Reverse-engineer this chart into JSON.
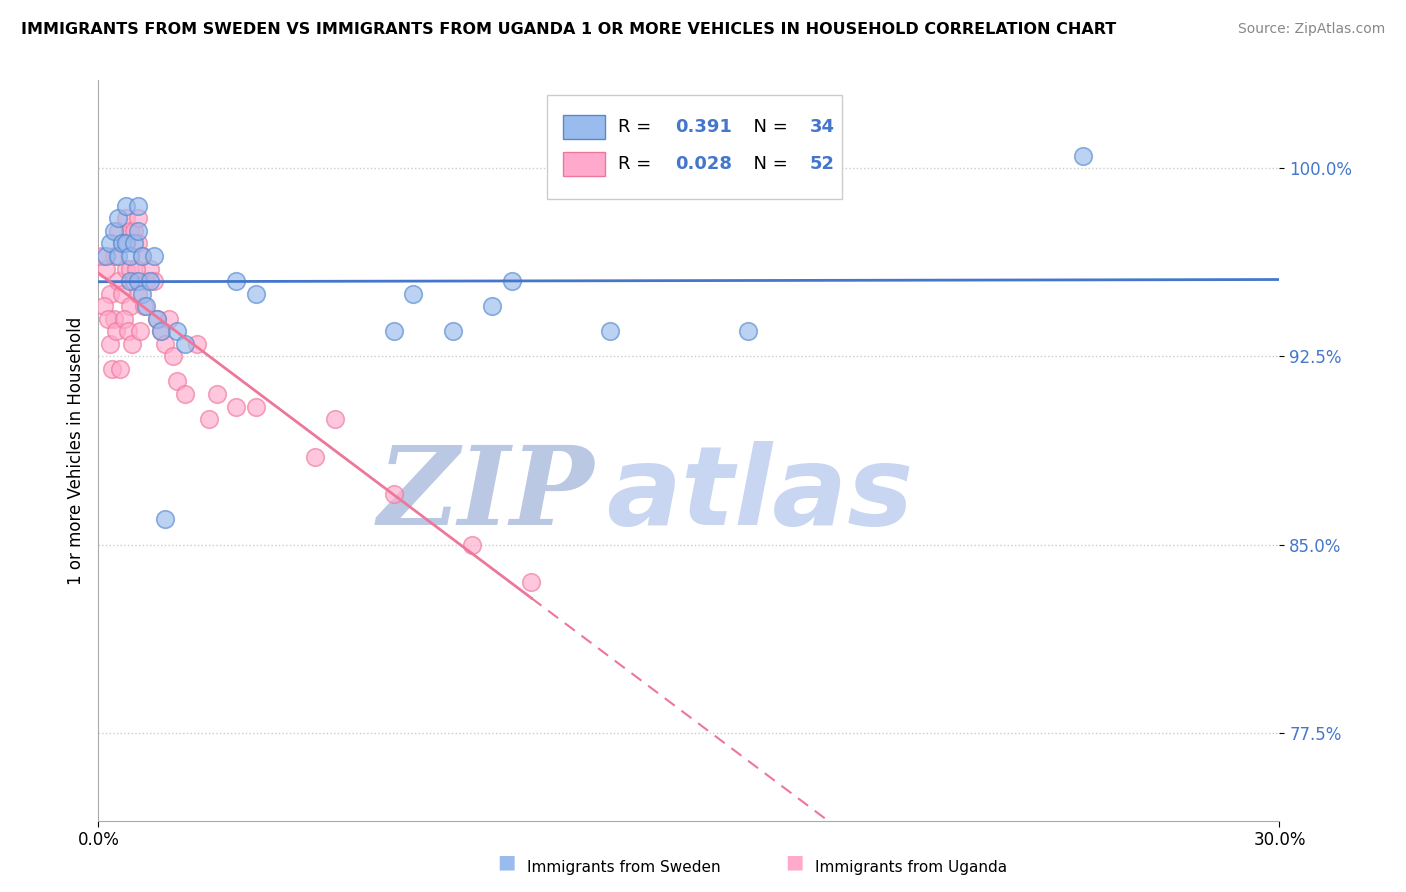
{
  "title": "IMMIGRANTS FROM SWEDEN VS IMMIGRANTS FROM UGANDA 1 OR MORE VEHICLES IN HOUSEHOLD CORRELATION CHART",
  "source": "Source: ZipAtlas.com",
  "ylabel": "1 or more Vehicles in Household",
  "yticks": [
    77.5,
    85.0,
    92.5,
    100.0
  ],
  "ytick_labels": [
    "77.5%",
    "85.0%",
    "92.5%",
    "100.0%"
  ],
  "xlim": [
    0.0,
    30.0
  ],
  "ylim": [
    74.0,
    103.5
  ],
  "color_sweden_fill": "#99BBEE",
  "color_sweden_edge": "#5588CC",
  "color_uganda_fill": "#FFAACC",
  "color_uganda_edge": "#EE7799",
  "color_sweden_line": "#4477CC",
  "color_uganda_line": "#EE7799",
  "color_ytick": "#4477CC",
  "watermark_zip_color": "#AABBDD",
  "watermark_atlas_color": "#BBCCEE",
  "legend_r_color": "#4477CC",
  "legend_n_color": "#4477CC",
  "sweden_x": [
    0.2,
    0.3,
    0.4,
    0.5,
    0.5,
    0.6,
    0.7,
    0.7,
    0.8,
    0.8,
    0.9,
    1.0,
    1.0,
    1.0,
    1.1,
    1.1,
    1.2,
    1.3,
    1.4,
    1.5,
    1.6,
    1.7,
    2.0,
    2.2,
    3.5,
    4.0,
    7.5,
    8.0,
    9.0,
    10.0,
    10.5,
    13.0,
    16.5,
    25.0
  ],
  "sweden_y": [
    96.5,
    97.0,
    97.5,
    98.0,
    96.5,
    97.0,
    98.5,
    97.0,
    96.5,
    95.5,
    97.0,
    98.5,
    97.5,
    95.5,
    96.5,
    95.0,
    94.5,
    95.5,
    96.5,
    94.0,
    93.5,
    86.0,
    93.5,
    93.0,
    95.5,
    95.0,
    93.5,
    95.0,
    93.5,
    94.5,
    95.5,
    93.5,
    93.5,
    100.5
  ],
  "uganda_x": [
    0.2,
    0.3,
    0.3,
    0.4,
    0.4,
    0.5,
    0.5,
    0.6,
    0.6,
    0.7,
    0.7,
    0.8,
    0.8,
    0.8,
    0.9,
    0.9,
    1.0,
    1.0,
    1.0,
    1.1,
    1.2,
    1.3,
    1.4,
    1.5,
    1.6,
    1.7,
    1.8,
    1.9,
    2.0,
    2.5,
    3.0,
    3.5,
    4.0,
    5.5,
    6.0,
    7.5,
    9.5,
    11.0,
    0.1,
    0.15,
    0.25,
    0.35,
    0.45,
    0.55,
    0.65,
    0.75,
    0.85,
    0.95,
    1.05,
    1.15,
    2.2,
    2.8
  ],
  "uganda_y": [
    96.0,
    95.0,
    93.0,
    96.5,
    94.0,
    97.5,
    95.5,
    97.0,
    95.0,
    98.0,
    96.0,
    97.5,
    96.0,
    94.5,
    97.5,
    95.5,
    98.0,
    97.0,
    95.0,
    96.5,
    95.5,
    96.0,
    95.5,
    94.0,
    93.5,
    93.0,
    94.0,
    92.5,
    91.5,
    93.0,
    91.0,
    90.5,
    90.5,
    88.5,
    90.0,
    87.0,
    85.0,
    83.5,
    96.5,
    94.5,
    94.0,
    92.0,
    93.5,
    92.0,
    94.0,
    93.5,
    93.0,
    96.0,
    93.5,
    94.5,
    91.0,
    90.0
  ]
}
